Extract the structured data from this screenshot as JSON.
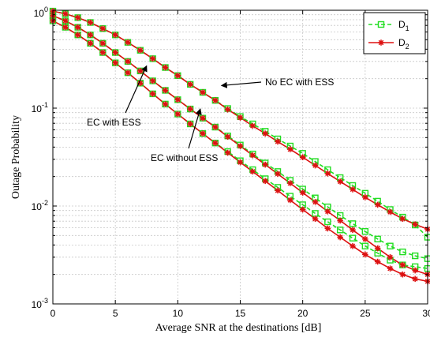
{
  "chart_data": {
    "type": "line",
    "xlabel": "Average SNR at the destinations [dB]",
    "ylabel": "Outage Probability",
    "xlim": [
      0,
      30
    ],
    "ylim": [
      0.001,
      1
    ],
    "yscale": "log",
    "grid": true,
    "legend_placement": "top-right",
    "x_ticks": [
      0,
      5,
      10,
      15,
      20,
      25,
      30
    ],
    "x_tick_labels": [
      "0",
      "5",
      "10",
      "15",
      "20",
      "25",
      "30"
    ],
    "y_ticks": [
      1,
      0.1,
      0.01,
      0.001
    ],
    "y_tick_labels": [
      {
        "base": "10",
        "exp": "0"
      },
      {
        "base": "10",
        "exp": "-1"
      },
      {
        "base": "10",
        "exp": "-2"
      },
      {
        "base": "10",
        "exp": "-3"
      }
    ],
    "x": [
      0,
      1,
      2,
      3,
      4,
      5,
      6,
      7,
      8,
      9,
      10,
      11,
      12,
      13,
      14,
      15,
      16,
      17,
      18,
      19,
      20,
      21,
      22,
      23,
      24,
      25,
      26,
      27,
      28,
      29,
      30
    ],
    "legend": [
      {
        "name": "D",
        "sub": "1",
        "color": "#22dd22",
        "dash": true,
        "marker": "square"
      },
      {
        "name": "D",
        "sub": "2",
        "color": "#dd1111",
        "dash": false,
        "marker": "star"
      }
    ],
    "series": [
      {
        "group": "No EC with ESS",
        "legend_index": 0,
        "values": [
          0.98,
          0.92,
          0.84,
          0.75,
          0.65,
          0.56,
          0.47,
          0.39,
          0.32,
          0.26,
          0.215,
          0.175,
          0.145,
          0.12,
          0.099,
          0.082,
          0.069,
          0.058,
          0.0485,
          0.041,
          0.0345,
          0.0285,
          0.0235,
          0.0195,
          0.0162,
          0.0135,
          0.0112,
          0.0092,
          0.0077,
          0.0064,
          0.0048
        ]
      },
      {
        "group": "No EC with ESS",
        "legend_index": 1,
        "values": [
          0.98,
          0.92,
          0.84,
          0.75,
          0.65,
          0.56,
          0.47,
          0.39,
          0.32,
          0.26,
          0.215,
          0.175,
          0.145,
          0.12,
          0.097,
          0.08,
          0.066,
          0.055,
          0.0455,
          0.038,
          0.0315,
          0.026,
          0.0215,
          0.0178,
          0.0148,
          0.0123,
          0.0103,
          0.0087,
          0.0074,
          0.0065,
          0.0058
        ]
      },
      {
        "group": "EC with ESS",
        "legend_index": 0,
        "values": [
          0.88,
          0.78,
          0.67,
          0.56,
          0.46,
          0.37,
          0.3,
          0.24,
          0.19,
          0.152,
          0.122,
          0.098,
          0.079,
          0.064,
          0.052,
          0.042,
          0.034,
          0.0275,
          0.0225,
          0.0183,
          0.0149,
          0.0121,
          0.0098,
          0.008,
          0.0066,
          0.0055,
          0.0046,
          0.0039,
          0.0034,
          0.0031,
          0.0029
        ]
      },
      {
        "group": "EC with ESS",
        "legend_index": 1,
        "values": [
          0.88,
          0.78,
          0.67,
          0.56,
          0.46,
          0.37,
          0.3,
          0.24,
          0.19,
          0.152,
          0.122,
          0.098,
          0.079,
          0.064,
          0.051,
          0.041,
          0.033,
          0.0265,
          0.0213,
          0.0171,
          0.0137,
          0.011,
          0.0088,
          0.0071,
          0.0057,
          0.0046,
          0.0037,
          0.003,
          0.0025,
          0.0022,
          0.002
        ]
      },
      {
        "group": "EC without ESS",
        "legend_index": 0,
        "values": [
          0.78,
          0.67,
          0.56,
          0.46,
          0.37,
          0.29,
          0.23,
          0.18,
          0.14,
          0.11,
          0.087,
          0.069,
          0.055,
          0.044,
          0.036,
          0.029,
          0.0235,
          0.019,
          0.0155,
          0.0126,
          0.0103,
          0.0084,
          0.0069,
          0.0057,
          0.0047,
          0.0039,
          0.0033,
          0.0028,
          0.0025,
          0.0024,
          0.0023
        ]
      },
      {
        "group": "EC without ESS",
        "legend_index": 1,
        "values": [
          0.78,
          0.67,
          0.56,
          0.46,
          0.37,
          0.29,
          0.23,
          0.18,
          0.14,
          0.11,
          0.087,
          0.069,
          0.055,
          0.044,
          0.035,
          0.028,
          0.0225,
          0.018,
          0.0144,
          0.0115,
          0.0092,
          0.0074,
          0.0059,
          0.0048,
          0.0039,
          0.0032,
          0.0027,
          0.0023,
          0.002,
          0.0018,
          0.0017
        ]
      }
    ],
    "annotations": [
      {
        "text": "No EC with ESS",
        "point": [
          13.5,
          0.17
        ]
      },
      {
        "text": "EC with ESS",
        "point": [
          7.5,
          0.27
        ]
      },
      {
        "text": "EC without ESS",
        "point": [
          11.8,
          0.098
        ]
      }
    ]
  }
}
